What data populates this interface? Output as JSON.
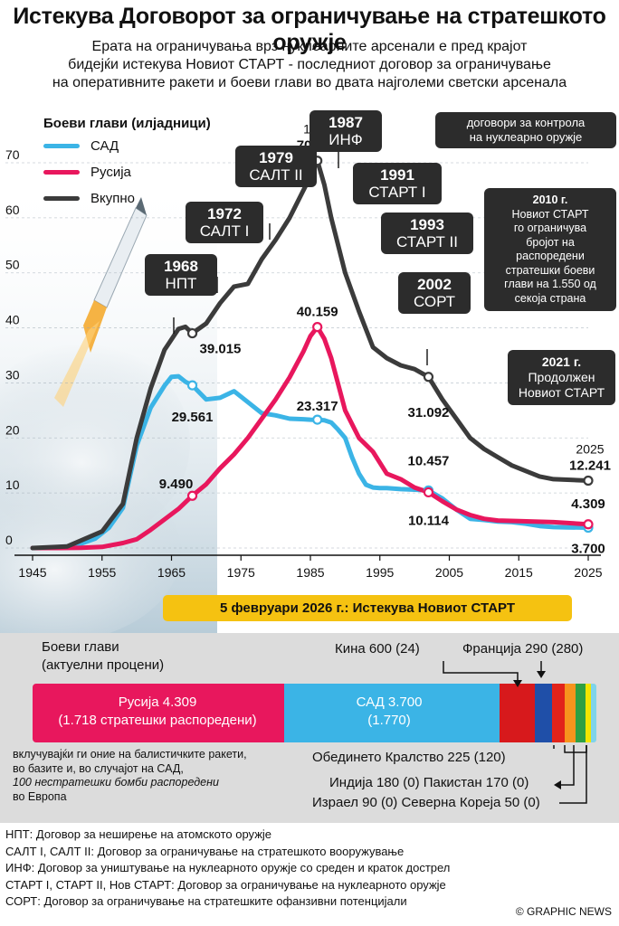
{
  "title": "Истекува Договорот за ограничување на стратешкото оружје",
  "subtitle": [
    "Ерата на ограничувања врз нуклеарните арсенали е пред крајот",
    "бидејќи истекува Новиот СТАРТ - последниот договор за ограничување",
    "на оперативните ракети и боеви глави во двата најголеми светски арсенала"
  ],
  "legend": {
    "title": "Боеви глави (илјадници)",
    "items": [
      {
        "label": "САД",
        "color": "#3bb4e6"
      },
      {
        "label": "Русија",
        "color": "#e8175d"
      },
      {
        "label": "Вкупно",
        "color": "#3b3b3b"
      }
    ]
  },
  "control_note": [
    "договори за контрола",
    "на нуклеарно оружје"
  ],
  "treaties": [
    {
      "year": "1968",
      "name": "НПТ"
    },
    {
      "year": "1972",
      "name": "САЛТ I"
    },
    {
      "year": "1979",
      "name": "САЛТ II"
    },
    {
      "year": "1987",
      "name": "ИНФ"
    },
    {
      "year": "1991",
      "name": "СТАРТ I"
    },
    {
      "year": "1993",
      "name": "СТАРТ II"
    },
    {
      "year": "2002",
      "name": "СОРТ"
    }
  ],
  "note_2010": [
    "2010 г.",
    "Новиот СТАРТ",
    "го ограничува",
    "бројот на",
    "распоредени",
    "стратешки боеви",
    "глави на 1.550 од",
    "секоја страна"
  ],
  "note_2021": [
    "2021 г.",
    "Продолжен",
    "Новиот СТАРТ"
  ],
  "banner": "5 февруари 2026 г.: Истекува Новиот СТАРТ",
  "chart_data": {
    "type": "line",
    "ylabel": "Боеви глави (илјадници)",
    "ylim": [
      0,
      70
    ],
    "xlim": [
      1945,
      2025
    ],
    "x_ticks": [
      1945,
      1955,
      1965,
      1975,
      1985,
      1995,
      2005,
      2015,
      2025
    ],
    "y_ticks": [
      0,
      10,
      20,
      30,
      40,
      50,
      60,
      70
    ],
    "series": [
      {
        "name": "САД",
        "color": "#3bb4e6",
        "x": [
          1945,
          1947,
          1950,
          1952,
          1954,
          1956,
          1958,
          1960,
          1962,
          1964,
          1965,
          1966,
          1967,
          1968,
          1970,
          1972,
          1974,
          1976,
          1978,
          1980,
          1982,
          1984,
          1985,
          1986,
          1987,
          1988,
          1989,
          1990,
          1991,
          1992,
          1993,
          1994,
          1995,
          1996,
          1998,
          2000,
          2002,
          2004,
          2006,
          2008,
          2010,
          2012,
          2014,
          2016,
          2018,
          2020,
          2022,
          2025
        ],
        "y": [
          0.002,
          0.01,
          0.3,
          0.8,
          1.7,
          3.7,
          7.3,
          18.6,
          25.5,
          29.5,
          31.1,
          31.2,
          30.2,
          29.561,
          27.0,
          27.3,
          28.5,
          26.5,
          24.5,
          24.1,
          23.5,
          23.4,
          23.317,
          23.3,
          23.2,
          22.8,
          21.5,
          20.0,
          16.5,
          13.5,
          11.5,
          11.0,
          10.9,
          10.9,
          10.7,
          10.6,
          10.457,
          9.0,
          7.0,
          5.3,
          5.1,
          4.8,
          4.7,
          4.4,
          4.0,
          3.8,
          3.75,
          3.7
        ]
      },
      {
        "name": "Русија",
        "color": "#e8175d",
        "x": [
          1945,
          1949,
          1952,
          1955,
          1958,
          1960,
          1962,
          1964,
          1966,
          1968,
          1970,
          1972,
          1974,
          1976,
          1978,
          1980,
          1982,
          1984,
          1985,
          1986,
          1987,
          1988,
          1990,
          1992,
          1994,
          1996,
          1998,
          2000,
          2002,
          2004,
          2006,
          2008,
          2010,
          2012,
          2015,
          2020,
          2025
        ],
        "y": [
          0,
          0,
          0.05,
          0.2,
          0.9,
          1.6,
          3.3,
          5.2,
          7.1,
          9.49,
          11.6,
          14.5,
          17.0,
          20.0,
          23.5,
          27.0,
          31.0,
          35.7,
          38.5,
          40.159,
          38.0,
          34.5,
          25.0,
          20.0,
          17.5,
          13.5,
          12.5,
          11.0,
          10.114,
          8.5,
          7.0,
          6.0,
          5.3,
          5.0,
          4.9,
          4.7,
          4.309
        ]
      },
      {
        "name": "Вкупно",
        "color": "#3b3b3b",
        "x": [
          1945,
          1950,
          1955,
          1958,
          1960,
          1962,
          1964,
          1966,
          1967,
          1968,
          1970,
          1972,
          1974,
          1976,
          1978,
          1980,
          1982,
          1984,
          1985,
          1986,
          1987,
          1988,
          1990,
          1992,
          1994,
          1996,
          1998,
          2000,
          2002,
          2004,
          2006,
          2008,
          2010,
          2012,
          2014,
          2016,
          2018,
          2020,
          2022,
          2025
        ],
        "y": [
          0.002,
          0.3,
          3.0,
          8.0,
          20.0,
          29.0,
          36.0,
          39.8,
          40.2,
          39.015,
          40.8,
          44.5,
          47.5,
          48.0,
          52.5,
          56.0,
          60.0,
          65.0,
          67.5,
          70.374,
          66.0,
          60.0,
          50.0,
          43.0,
          36.5,
          34.5,
          33.2,
          32.5,
          31.092,
          27.0,
          23.5,
          20.0,
          18.0,
          16.5,
          15.0,
          14.0,
          13.0,
          12.5,
          12.4,
          12.241
        ]
      }
    ],
    "annotations": [
      {
        "series": "Вкупно",
        "x": 1968,
        "y": 39.015,
        "label": "39.015"
      },
      {
        "series": "Вкупно",
        "x": 1986,
        "y": 70.374,
        "label": "70.374",
        "year_label": "1986"
      },
      {
        "series": "Вкупно",
        "x": 2002,
        "y": 31.092,
        "label": "31.092"
      },
      {
        "series": "Вкупно",
        "x": 2025,
        "y": 12.241,
        "label": "12.241",
        "year_label": "2025"
      },
      {
        "series": "САД",
        "x": 1968,
        "y": 29.561,
        "label": "29.561"
      },
      {
        "series": "САД",
        "x": 1986,
        "y": 23.317,
        "label": "23.317"
      },
      {
        "series": "САД",
        "x": 2002,
        "y": 10.457,
        "label": "10.457"
      },
      {
        "series": "САД",
        "x": 2025,
        "y": 3.7,
        "label": "3.700"
      },
      {
        "series": "Русија",
        "x": 1968,
        "y": 9.49,
        "label": "9.490"
      },
      {
        "series": "Русија",
        "x": 1986,
        "y": 40.159,
        "label": "40.159"
      },
      {
        "series": "Русија",
        "x": 2002,
        "y": 10.114,
        "label": "10.114"
      },
      {
        "series": "Русија",
        "x": 2025,
        "y": 4.309,
        "label": "4.309"
      }
    ]
  },
  "warheads": {
    "title": [
      "Боеви глави",
      "(актуелни процени)"
    ],
    "total": 12241,
    "segments": [
      {
        "name": "Русија",
        "value": 4309,
        "deployed": 1718,
        "color": "#e8175d"
      },
      {
        "name": "САД",
        "value": 3700,
        "deployed": 1770,
        "color": "#3bb4e6"
      },
      {
        "name": "Кина",
        "value": 600,
        "deployed": 24,
        "color": "#d7191c"
      },
      {
        "name": "Франција",
        "value": 290,
        "deployed": 280,
        "color": "#1f4fa8"
      },
      {
        "name": "Обединето Кралство",
        "value": 225,
        "deployed": 120,
        "color": "#e2231a"
      },
      {
        "name": "Индија",
        "value": 180,
        "deployed": 0,
        "color": "#f7941d"
      },
      {
        "name": "Пакистан",
        "value": 170,
        "deployed": 0,
        "color": "#2ea043"
      },
      {
        "name": "Израел",
        "value": 90,
        "deployed": 0,
        "color": "#f2e600"
      },
      {
        "name": "Северна Кореја",
        "value": 50,
        "deployed": 0,
        "color": "#7fd4ea"
      }
    ],
    "russia_label": "Русија 4.309",
    "russia_sub": "(1.718 стратешки распоредени)",
    "usa_label": "САД 3.700",
    "usa_sub": "(1.770)",
    "china": "Кина 600 (24)",
    "france": "Франција 290 (280)",
    "uk": "Обединето Кралство 225 (120)",
    "india_pakistan": "Индија 180 (0) Пакистан 170 (0)",
    "israel_nk": "Израел 90 (0) Северна Кореја 50 (0)",
    "footnote": [
      "вклучувајќи ги оние на балистичките ракети,",
      "во базите и, во случајот на САД,",
      "100 нестратешки бомби распоредени",
      "во Европа"
    ]
  },
  "glossary": [
    "НПТ: Договор за неширење на атомското оружје",
    "САЛТ I, САЛТ II: Договор за ограничување на стратешкото вооружување",
    "ИНФ: Договор за уништување на нуклеарното оружје со среден и краток дострел",
    "СТАРТ I, СТАРТ II, Нов СТАРТ: Договор за ограничување на нуклеарното оружје",
    "СОРТ: Договор за ограничување на стратешките офанзивни потенцијали"
  ],
  "credit": "© GRAPHIC NEWS"
}
